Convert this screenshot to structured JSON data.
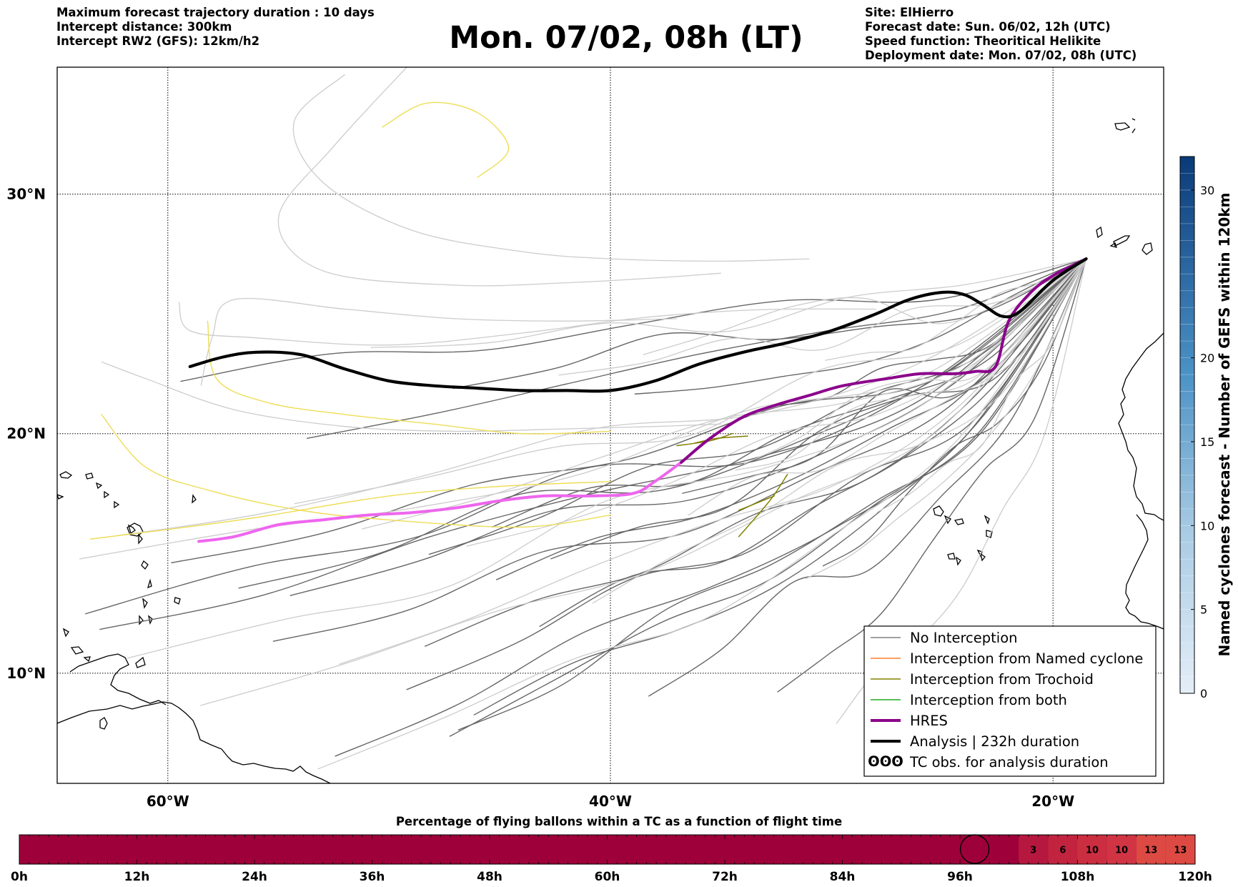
{
  "header": {
    "left_lines": [
      "Maximum forecast trajectory duration : 10 days",
      "Intercept distance: 300km",
      "Intercept RW2 (GFS):  12km/h2"
    ],
    "title": "Mon. 07/02, 08h (LT)",
    "right_lines": [
      "Site: ElHierro",
      "Forecast date: Sun. 06/02, 12h (UTC)",
      "Speed function: Theoritical Helikite",
      "Deployment date: Mon. 07/02, 08h (UTC)"
    ]
  },
  "map": {
    "lon_range": [
      -65,
      -15
    ],
    "lat_range": [
      5.4,
      35.3
    ],
    "lat_ticks": [
      {
        "value": 30,
        "label": "30°N"
      },
      {
        "value": 20,
        "label": "20°N"
      },
      {
        "value": 10,
        "label": "10°N"
      }
    ],
    "lon_ticks": [
      {
        "value": -60,
        "label": "60°W"
      },
      {
        "value": -40,
        "label": "40°W"
      },
      {
        "value": -20,
        "label": "20°W"
      }
    ]
  },
  "colors": {
    "no_interception": "#666666",
    "no_interception_light": "#cccccc",
    "named_cyclone": "#ff7f2a",
    "trochoid": "#808000",
    "both": "#22aa22",
    "hres": "#8b008b",
    "hres_bright": "#ee66ee",
    "analysis": "#000000",
    "yellow": "#eedd55",
    "colorbar_light": "#dde8f4",
    "colorbar_dark": "#0b3b7a",
    "timeline_base": "#9e003a"
  },
  "legend": [
    {
      "key": "no_interception",
      "label": "No Interception",
      "style": "line",
      "color": "#808080",
      "width": 1.5
    },
    {
      "key": "named_cyclone",
      "label": "Interception from Named cyclone",
      "style": "line",
      "color": "#ff7f2a",
      "width": 1.5
    },
    {
      "key": "trochoid",
      "label": "Interception from Trochoid",
      "style": "line",
      "color": "#808000",
      "width": 1.5
    },
    {
      "key": "both",
      "label": "Interception from both",
      "style": "line",
      "color": "#22aa22",
      "width": 1.5
    },
    {
      "key": "hres",
      "label": "HRES",
      "style": "line",
      "color": "#8b008b",
      "width": 4
    },
    {
      "key": "analysis",
      "label": "Analysis | 232h duration",
      "style": "line",
      "color": "#000000",
      "width": 4
    },
    {
      "key": "tc_obs",
      "label": "TC obs. for analysis duration",
      "style": "glyph",
      "glyph": "ʘʘʘ"
    }
  ],
  "colorbar": {
    "title": "Named cyclones forecast - Number of GEFS within 120km",
    "min": 0,
    "max": 32,
    "ticks": [
      0,
      5,
      10,
      15,
      20,
      30
    ]
  },
  "timeline": {
    "title": "Percentage of flying ballons within a TC as a function of flight time",
    "ticks": [
      "0h",
      "12h",
      "24h",
      "36h",
      "48h",
      "60h",
      "72h",
      "84h",
      "96h",
      "108h",
      "120h"
    ],
    "max_hours": 120,
    "marker_hour": 97.5,
    "cells": [
      {
        "start_h": 102,
        "end_h": 105,
        "value": "3",
        "color": "#b5173f"
      },
      {
        "start_h": 105,
        "end_h": 108,
        "value": "6",
        "color": "#c2243f"
      },
      {
        "start_h": 108,
        "end_h": 111,
        "value": "10",
        "color": "#cc2e41"
      },
      {
        "start_h": 111,
        "end_h": 114,
        "value": "10",
        "color": "#d13443"
      },
      {
        "start_h": 114,
        "end_h": 117,
        "value": "13",
        "color": "#dd4a43"
      },
      {
        "start_h": 117,
        "end_h": 120,
        "value": "13",
        "color": "#dd4a43"
      }
    ]
  },
  "chart_data": {
    "type": "line",
    "title": "Mon. 07/02, 08h (LT)",
    "xlabel": "",
    "ylabel": "",
    "xlim": [
      -65,
      -15
    ],
    "ylim": [
      5.4,
      35.3
    ],
    "grid": true,
    "legend_position": "bottom-right",
    "series": [
      {
        "name": "Analysis | 232h duration",
        "category": "analysis",
        "points": [
          [
            -18.5,
            27.3
          ],
          [
            -20,
            26.4
          ],
          [
            -21.5,
            25.1
          ],
          [
            -22.3,
            24.9
          ],
          [
            -23.2,
            25.4
          ],
          [
            -24,
            25.8
          ],
          [
            -25,
            25.9
          ],
          [
            -26.5,
            25.6
          ],
          [
            -28,
            25
          ],
          [
            -30,
            24.3
          ],
          [
            -32,
            23.8
          ],
          [
            -34,
            23.4
          ],
          [
            -36,
            22.9
          ],
          [
            -38,
            22.2
          ],
          [
            -40,
            21.8
          ],
          [
            -42,
            21.8
          ],
          [
            -44,
            21.8
          ],
          [
            -46,
            21.9
          ],
          [
            -48,
            22
          ],
          [
            -50,
            22.2
          ],
          [
            -52,
            22.7
          ],
          [
            -54,
            23.3
          ],
          [
            -56,
            23.4
          ],
          [
            -57.5,
            23.2
          ],
          [
            -59,
            22.8
          ]
        ]
      },
      {
        "name": "HRES",
        "category": "hres",
        "points": [
          [
            -18.5,
            27.3
          ],
          [
            -20,
            26.6
          ],
          [
            -21,
            25.9
          ],
          [
            -22,
            24.7
          ],
          [
            -22.6,
            22.8
          ],
          [
            -23.5,
            22.6
          ],
          [
            -24.5,
            22.5
          ],
          [
            -26,
            22.5
          ],
          [
            -27.5,
            22.3
          ],
          [
            -29.5,
            22
          ],
          [
            -31,
            21.6
          ],
          [
            -32.5,
            21.2
          ],
          [
            -34,
            20.7
          ],
          [
            -35.5,
            19.8
          ],
          [
            -36.8,
            18.8
          ]
        ]
      },
      {
        "name": "HRES (bright segment)",
        "category": "hres_bright",
        "points": [
          [
            -36.8,
            18.8
          ],
          [
            -38,
            18
          ],
          [
            -39,
            17.5
          ],
          [
            -41,
            17.4
          ],
          [
            -43,
            17.4
          ],
          [
            -45,
            17.2
          ],
          [
            -47,
            16.9
          ],
          [
            -49,
            16.7
          ],
          [
            -51,
            16.6
          ],
          [
            -53,
            16.4
          ],
          [
            -55,
            16.2
          ],
          [
            -57,
            15.7
          ],
          [
            -58.6,
            15.5
          ]
        ]
      },
      {
        "name": "Trochoid 1",
        "category": "trochoid",
        "points": [
          [
            -34.5,
            20
          ],
          [
            -35.5,
            19.7
          ],
          [
            -37,
            19.5
          ]
        ]
      },
      {
        "name": "Trochoid 2",
        "category": "trochoid",
        "points": [
          [
            -33.8,
            19.9
          ],
          [
            -35.2,
            19.8
          ],
          [
            -36.2,
            19.6
          ]
        ]
      },
      {
        "name": "Trochoid 3",
        "category": "trochoid",
        "points": [
          [
            -32,
            18.3
          ],
          [
            -32.8,
            17.2
          ],
          [
            -34.2,
            15.7
          ]
        ]
      },
      {
        "name": "Trochoid 4",
        "category": "trochoid",
        "points": [
          [
            -32.6,
            17.4
          ],
          [
            -34.2,
            16.8
          ]
        ]
      },
      {
        "name": "Yellow 1",
        "category": "yellow",
        "points": [
          [
            -46,
            30.7
          ],
          [
            -44.6,
            31.9
          ],
          [
            -46,
            33.4
          ],
          [
            -48.3,
            33.8
          ],
          [
            -50.3,
            32.8
          ]
        ]
      },
      {
        "name": "Yellow 2",
        "category": "yellow",
        "points": [
          [
            -58.2,
            24.7
          ],
          [
            -57.8,
            22.3
          ],
          [
            -55.5,
            21.3
          ],
          [
            -52,
            20.8
          ],
          [
            -48,
            20.4
          ],
          [
            -44,
            20
          ],
          [
            -40,
            20.1
          ]
        ]
      },
      {
        "name": "Yellow 3",
        "category": "yellow",
        "points": [
          [
            -63,
            20.8
          ],
          [
            -61,
            18.6
          ],
          [
            -58,
            17.6
          ],
          [
            -54,
            16.8
          ],
          [
            -50,
            16.4
          ],
          [
            -44,
            16.1
          ],
          [
            -40,
            16.6
          ]
        ]
      },
      {
        "name": "Yellow 4",
        "category": "yellow",
        "points": [
          [
            -63.5,
            15.6
          ],
          [
            -60,
            16
          ],
          [
            -56,
            16.5
          ],
          [
            -50,
            17.4
          ],
          [
            -45,
            17.8
          ],
          [
            -40,
            18
          ]
        ]
      }
    ]
  }
}
